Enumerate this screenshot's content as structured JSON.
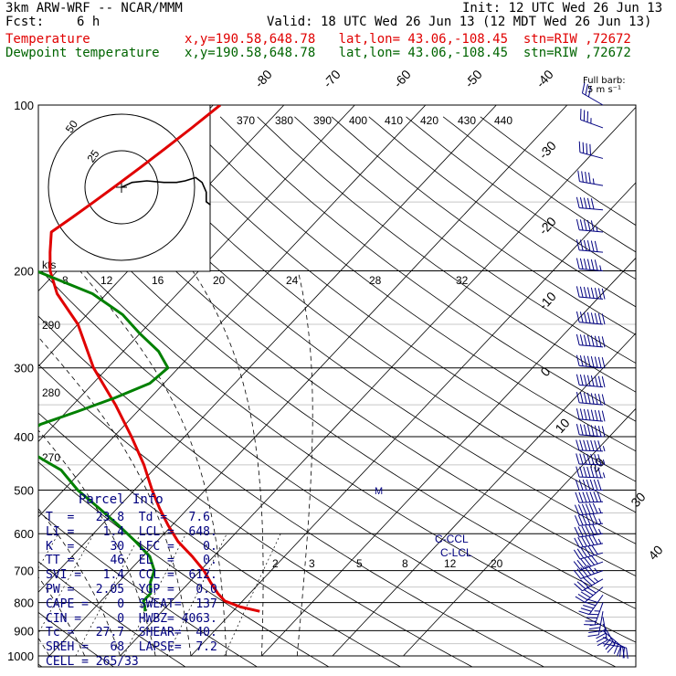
{
  "header": {
    "model": "3km ARW-WRF -- NCAR/MMM",
    "init": "Init: 12 UTC Wed 26 Jun 13",
    "fcst_label": "Fcst:",
    "fcst_value": "6 h",
    "valid": "Valid: 18 UTC Wed 26 Jun 13 (12 MDT Wed 26 Jun 13)",
    "temp_label": "Temperature",
    "temp_loc": "x,y=190.58,648.78   lat,lon= 43.06,-108.45  stn=RIW ,72672",
    "dew_label": "Dewpoint temperature",
    "dew_loc": "x,y=190.58,648.78   lat,lon= 43.06,-108.45  stn=RIW ,72672"
  },
  "barb_key": {
    "line1": "Full barb:",
    "line2": "5 m s⁻¹"
  },
  "parcel_info": {
    "title": "Parcel Info",
    "rows": [
      "T  =   23.8  Td =   7.6",
      "LI =    1.4  LCL =  648.",
      "K  =     30  LFC =    0.",
      "TT =     46  EL  =    0.",
      "SVI =   1.4  CCL =  612.",
      "PW =   2.05  YGP =   0.0",
      "CAPE =    0  SWEAT=  137",
      "CIN =     0  HWBZ= 4063.",
      "Tc =   27.7  SHEAR=  40.",
      "SREH =   68  LAPSE=  7.2",
      "CELL = 265/33"
    ]
  },
  "colors": {
    "temperature": "#e00000",
    "dewpoint": "#008000",
    "isobar": "#000000",
    "barb": "#000080"
  },
  "chart_data": {
    "type": "line",
    "title": "",
    "y_axis": {
      "label": "pressure (hPa)",
      "scale": "log",
      "range": [
        1000,
        100
      ],
      "ticks": [
        100,
        200,
        300,
        400,
        500,
        600,
        700,
        800,
        900,
        1000
      ]
    },
    "isotherm_labels": [
      -80,
      -70,
      -60,
      -50,
      -40,
      -30,
      -20,
      -10,
      0,
      10,
      20,
      30,
      40
    ],
    "theta_labels": [
      370,
      380,
      390,
      400,
      410,
      420,
      430,
      440
    ],
    "theta_low_labels": [
      290,
      280,
      270
    ],
    "mixing_ratio_labels_upper": [
      8,
      12,
      16,
      20,
      24,
      28,
      32
    ],
    "mixing_ratio_labels_lower": [
      2,
      3,
      5,
      8,
      12,
      20
    ],
    "hodograph": {
      "unit_label": "kts",
      "ring_labels": [
        25,
        50
      ],
      "u": [
        0,
        5,
        12,
        20,
        26,
        30,
        35,
        38,
        40,
        40,
        42
      ],
      "v": [
        0,
        3,
        4,
        3,
        3,
        4,
        6,
        3,
        -3,
        -9,
        -11
      ]
    },
    "annotations": [
      "C-CCL",
      "C-LCL",
      "M"
    ],
    "series": [
      {
        "name": "Temperature",
        "p": [
          830,
          815,
          795,
          770,
          735,
          700,
          660,
          620,
          580,
          540,
          500,
          450,
          400,
          350,
          300,
          250,
          220,
          200,
          185,
          170,
          160,
          150,
          140,
          130,
          120,
          110,
          100
        ],
        "t": [
          23.8,
          20.5,
          17.5,
          15.5,
          13,
          10.5,
          7,
          3,
          -0.5,
          -4,
          -7.5,
          -12,
          -17.5,
          -24,
          -32,
          -40,
          -47,
          -51,
          -53.5,
          -56,
          -55,
          -54,
          -53,
          -52,
          -51,
          -50,
          -49
        ]
      },
      {
        "name": "Dewpoint temperature",
        "p": [
          830,
          815,
          795,
          770,
          735,
          700,
          660,
          620,
          580,
          540,
          500,
          460,
          440,
          420,
          400,
          380,
          360,
          340,
          320,
          300,
          280,
          260,
          240,
          220,
          200,
          180,
          160,
          140,
          130,
          120,
          110,
          100
        ],
        "td": [
          7.6,
          7,
          6,
          6,
          4.5,
          3.5,
          1,
          -3,
          -7.5,
          -12.5,
          -18,
          -23,
          -27,
          -31,
          -33,
          -32,
          -28.5,
          -25,
          -22,
          -21.5,
          -25,
          -30,
          -35,
          -42,
          -53,
          -62,
          -71,
          -78,
          -79,
          -80.5,
          -82,
          -84
        ]
      }
    ],
    "wind_barbs": {
      "p": [
        950,
        925,
        900,
        875,
        850,
        830,
        800,
        775,
        750,
        725,
        700,
        675,
        650,
        625,
        600,
        575,
        550,
        525,
        500,
        475,
        450,
        425,
        400,
        375,
        350,
        325,
        300,
        275,
        250,
        225,
        200,
        185,
        170,
        155,
        140,
        125,
        110,
        100
      ],
      "dir": [
        100,
        115,
        130,
        150,
        170,
        190,
        200,
        215,
        230,
        240,
        250,
        250,
        255,
        260,
        262,
        265,
        265,
        268,
        270,
        272,
        272,
        272,
        275,
        275,
        275,
        275,
        275,
        275,
        275,
        275,
        275,
        275,
        275,
        275,
        280,
        285,
        290,
        300
      ],
      "spd": [
        4,
        4,
        5,
        6,
        7,
        8,
        9,
        10,
        10,
        11,
        11,
        12,
        12,
        13,
        13,
        13,
        13,
        14,
        14,
        15,
        15,
        15,
        16,
        16,
        17,
        17,
        18,
        18,
        17,
        16,
        13,
        12,
        11,
        10,
        9,
        8,
        7,
        6
      ]
    }
  }
}
